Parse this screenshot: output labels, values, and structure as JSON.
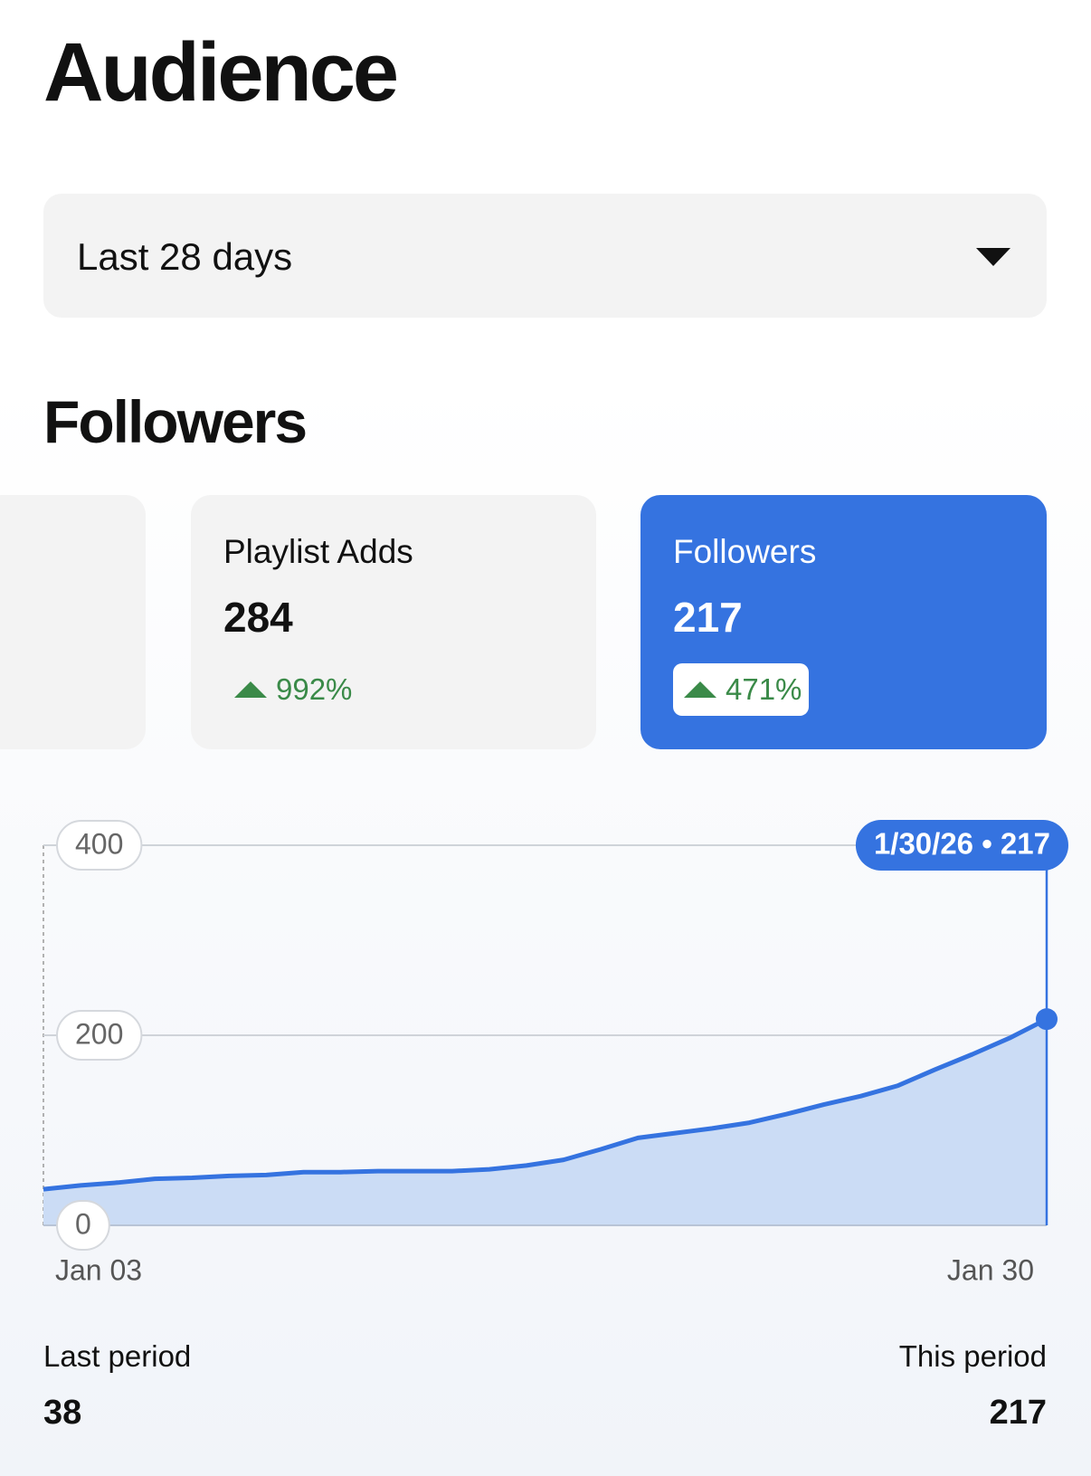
{
  "header": {
    "title": "Audience"
  },
  "filter": {
    "label": "Last 28 days"
  },
  "section": {
    "title": "Followers"
  },
  "cards": [
    {
      "label": "Playlist Adds",
      "value": 284,
      "change": "992%"
    },
    {
      "label": "Followers",
      "value": 217,
      "change": "471%"
    }
  ],
  "chart_data": {
    "type": "line",
    "categories": [
      "Jan 03",
      null,
      null,
      null,
      null,
      null,
      null,
      null,
      null,
      null,
      null,
      null,
      null,
      null,
      null,
      null,
      null,
      null,
      null,
      null,
      null,
      null,
      null,
      null,
      null,
      null,
      null,
      "Jan 30"
    ],
    "series": [
      {
        "name": "Followers",
        "color": "#3573e0",
        "values": [
          38,
          42,
          45,
          49,
          50,
          52,
          53,
          56,
          56,
          57,
          57,
          57,
          59,
          63,
          69,
          80,
          92,
          97,
          102,
          108,
          117,
          127,
          136,
          147,
          164,
          180,
          197,
          217
        ]
      }
    ],
    "ylim": [
      0,
      400
    ],
    "yticks": [
      0,
      200,
      400
    ],
    "grid": true,
    "annotation": "1/30/26 • 217"
  },
  "summary": [
    {
      "label": "Last period",
      "value": 38
    },
    {
      "label": "This period",
      "value": 217
    }
  ]
}
